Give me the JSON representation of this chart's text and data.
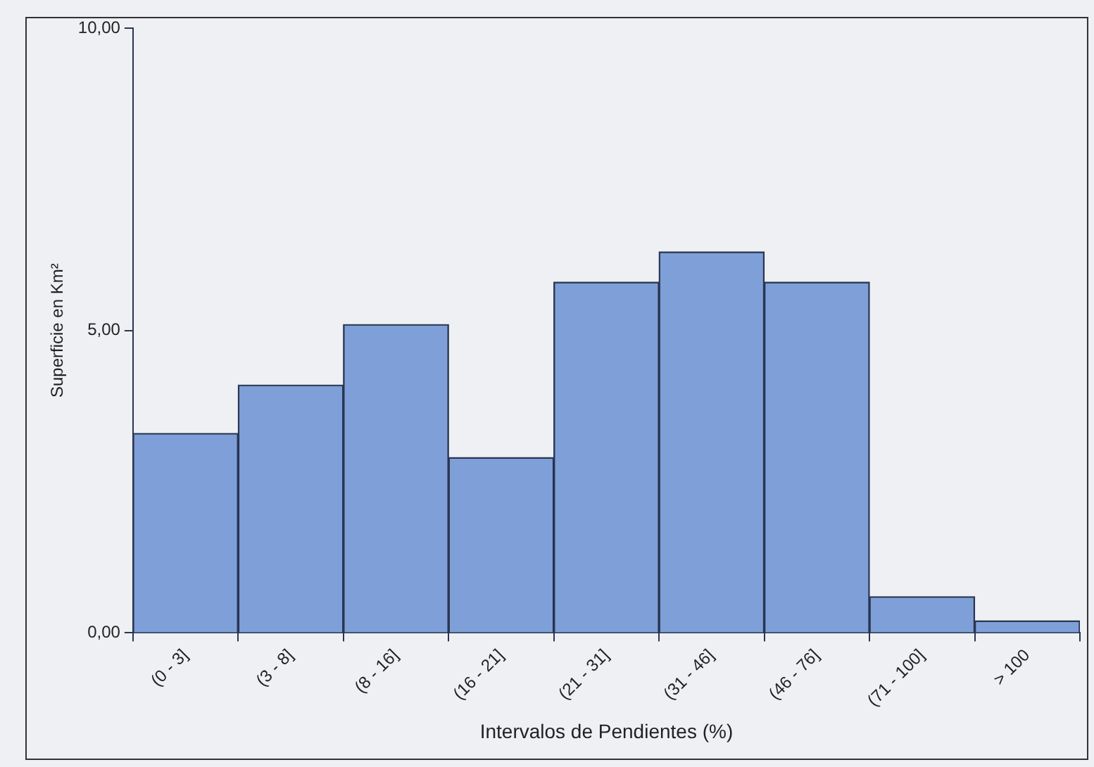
{
  "chart_data": {
    "type": "bar",
    "xlabel": "Intervalos de Pendientes (%)",
    "ylabel": "Superficie en Km²",
    "categories": [
      "(0 - 3]",
      "(3 - 8]",
      "(8 - 16]",
      "(16 - 21]",
      "(21 - 31]",
      "(31 - 46]",
      "(46 - 76]",
      "(71 - 100]",
      "> 100"
    ],
    "values": [
      3.3,
      4.1,
      5.1,
      2.9,
      5.8,
      6.3,
      5.8,
      0.6,
      0.2
    ],
    "color": "#7f9fd8",
    "ylim": [
      0,
      10
    ],
    "yticks": [
      {
        "value": 0,
        "label": "0,00"
      },
      {
        "value": 5,
        "label": "5,00"
      },
      {
        "value": 10,
        "label": "10,00"
      }
    ],
    "grid": false,
    "legend": false
  }
}
